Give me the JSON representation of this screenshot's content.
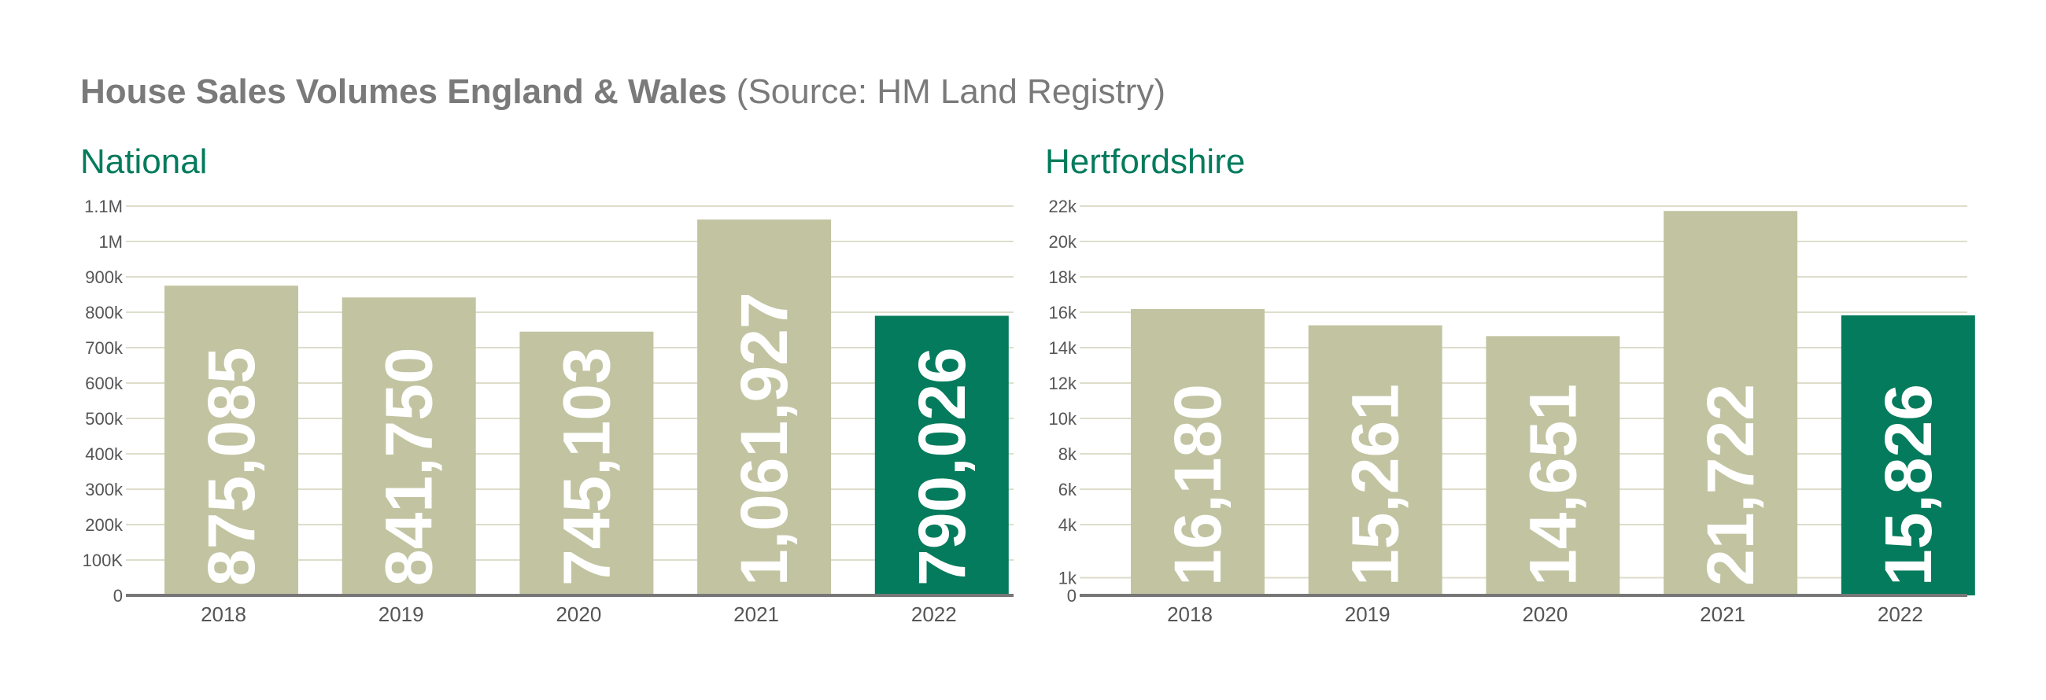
{
  "header": {
    "title_main": "House Sales Volumes England & Wales",
    "title_source": " (Source: HM Land Registry)"
  },
  "colors": {
    "bar": "#c2c4a1",
    "highlight": "#037b5c",
    "subtitle": "#037b5c",
    "grid": "#deddcb",
    "axis": "#777777",
    "tick_text": "#555555",
    "value_text": "#ffffff"
  },
  "chart_data": [
    {
      "type": "bar",
      "title": "National",
      "categories": [
        "2018",
        "2019",
        "2020",
        "2021",
        "2022"
      ],
      "values": [
        875085,
        841750,
        745103,
        1061927,
        790026
      ],
      "value_labels": [
        "875,085",
        "841,750",
        "745,103",
        "1,061,927",
        "790,026"
      ],
      "highlight_index": 4,
      "ylim": [
        0,
        1100000
      ],
      "yticks": [
        0,
        100000,
        200000,
        300000,
        400000,
        500000,
        600000,
        700000,
        800000,
        900000,
        1000000,
        1100000
      ],
      "ytick_labels": [
        "0",
        "100K",
        "200k",
        "300k",
        "400k",
        "500k",
        "600k",
        "700k",
        "800k",
        "900k",
        "1M",
        "1.1M"
      ],
      "xlabel": "",
      "ylabel": "",
      "grid": true
    },
    {
      "type": "bar",
      "title": "Hertfordshire",
      "categories": [
        "2018",
        "2019",
        "2020",
        "2021",
        "2022"
      ],
      "values": [
        16180,
        15261,
        14651,
        21722,
        15826
      ],
      "value_labels": [
        "16,180",
        "15,261",
        "14,651",
        "21,722",
        "15,826"
      ],
      "highlight_index": 4,
      "ylim": [
        0,
        22000
      ],
      "yticks": [
        0,
        1000,
        4000,
        6000,
        8000,
        10000,
        12000,
        14000,
        16000,
        18000,
        20000,
        22000
      ],
      "ytick_labels": [
        "0",
        "1k",
        "4k",
        "6k",
        "8k",
        "10k",
        "12k",
        "14k",
        "16k",
        "18k",
        "20k",
        "22k"
      ],
      "xlabel": "",
      "ylabel": "",
      "grid": true
    }
  ]
}
